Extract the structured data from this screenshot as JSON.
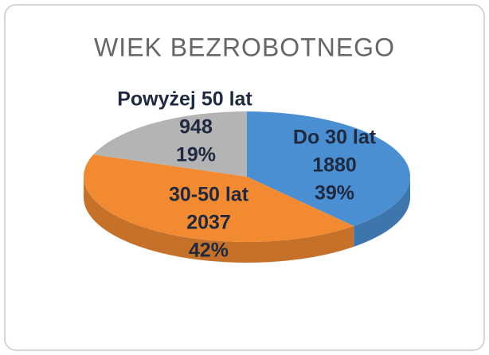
{
  "chart_data": {
    "type": "pie",
    "title": "WIEK BEZROBOTNEGO",
    "categories": [
      "Do 30 lat",
      "30-50 lat",
      "Powyżej 50 lat"
    ],
    "values": [
      1880,
      2037,
      948
    ],
    "percent_labels": [
      "39%",
      "42%",
      "19%"
    ],
    "colors": [
      "#4a8fd2",
      "#f28a32",
      "#b4b4b4"
    ]
  }
}
